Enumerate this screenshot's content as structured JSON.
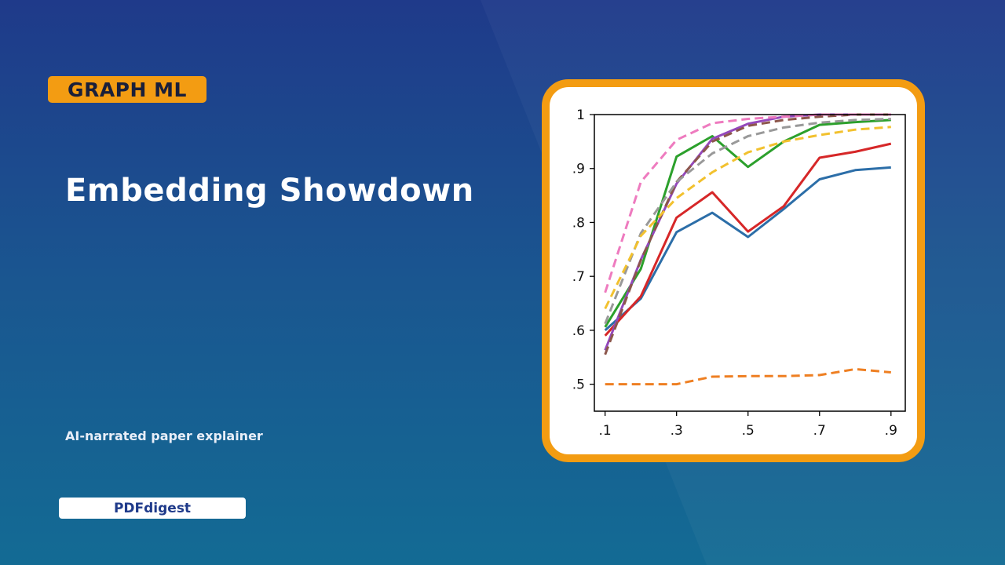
{
  "slide": {
    "tag": "GRAPH ML",
    "title": "Embedding Showdown",
    "subtitle": "AI-narrated paper explainer",
    "brand": "PDFdigest"
  },
  "colors": {
    "background_top": "#1f3a8a",
    "background_bottom": "#136b94",
    "accent": "#f39c12",
    "card": "#ffffff"
  },
  "chart_data": {
    "type": "line",
    "title": "",
    "xlabel": "",
    "ylabel": "",
    "x": [
      0.1,
      0.2,
      0.3,
      0.4,
      0.5,
      0.6,
      0.7,
      0.8,
      0.9
    ],
    "x_tick_labels": [
      ".1",
      ".3",
      ".5",
      ".7",
      ".9"
    ],
    "x_ticks": [
      0.1,
      0.3,
      0.5,
      0.7,
      0.9
    ],
    "y_tick_labels": [
      ".5",
      ".6",
      ".7",
      ".8",
      ".9",
      "1"
    ],
    "y_ticks": [
      0.5,
      0.6,
      0.7,
      0.8,
      0.9,
      1.0
    ],
    "xlim": [
      0.07,
      0.94
    ],
    "ylim": [
      0.45,
      1.0
    ],
    "grid": false,
    "legend": "none",
    "series": [
      {
        "color": "#2c6ea8",
        "style": "solid",
        "values": [
          0.6,
          0.659,
          0.782,
          0.818,
          0.773,
          0.825,
          0.88,
          0.897,
          0.902
        ]
      },
      {
        "color": "#d62728",
        "style": "solid",
        "values": [
          0.59,
          0.663,
          0.809,
          0.856,
          0.783,
          0.83,
          0.92,
          0.931,
          0.946
        ]
      },
      {
        "color": "#2ca02c",
        "style": "solid",
        "values": [
          0.606,
          0.714,
          0.922,
          0.96,
          0.903,
          0.95,
          0.981,
          0.986,
          0.99
        ]
      },
      {
        "color": "#9448bc",
        "style": "solid",
        "values": [
          0.563,
          0.731,
          0.872,
          0.955,
          0.983,
          0.996,
          1.0,
          1.0,
          1.0
        ]
      },
      {
        "color": "#8c564b",
        "style": "dashed",
        "values": [
          0.555,
          0.73,
          0.875,
          0.95,
          0.979,
          0.99,
          0.996,
          1.0,
          1.0
        ]
      },
      {
        "color": "#999999",
        "style": "dashed",
        "values": [
          0.612,
          0.78,
          0.875,
          0.928,
          0.96,
          0.976,
          0.985,
          0.99,
          0.992
        ]
      },
      {
        "color": "#f2c12e",
        "style": "dashed",
        "values": [
          0.64,
          0.775,
          0.845,
          0.893,
          0.93,
          0.95,
          0.962,
          0.972,
          0.977
        ]
      },
      {
        "color": "#ee7bbf",
        "style": "dashed",
        "values": [
          0.67,
          0.875,
          0.953,
          0.984,
          0.992,
          0.996,
          1.0,
          1.0,
          1.0
        ]
      },
      {
        "color": "#ee7f22",
        "style": "dashed",
        "values": [
          0.5,
          0.5,
          0.5,
          0.514,
          0.515,
          0.515,
          0.517,
          0.528,
          0.522
        ]
      }
    ]
  }
}
